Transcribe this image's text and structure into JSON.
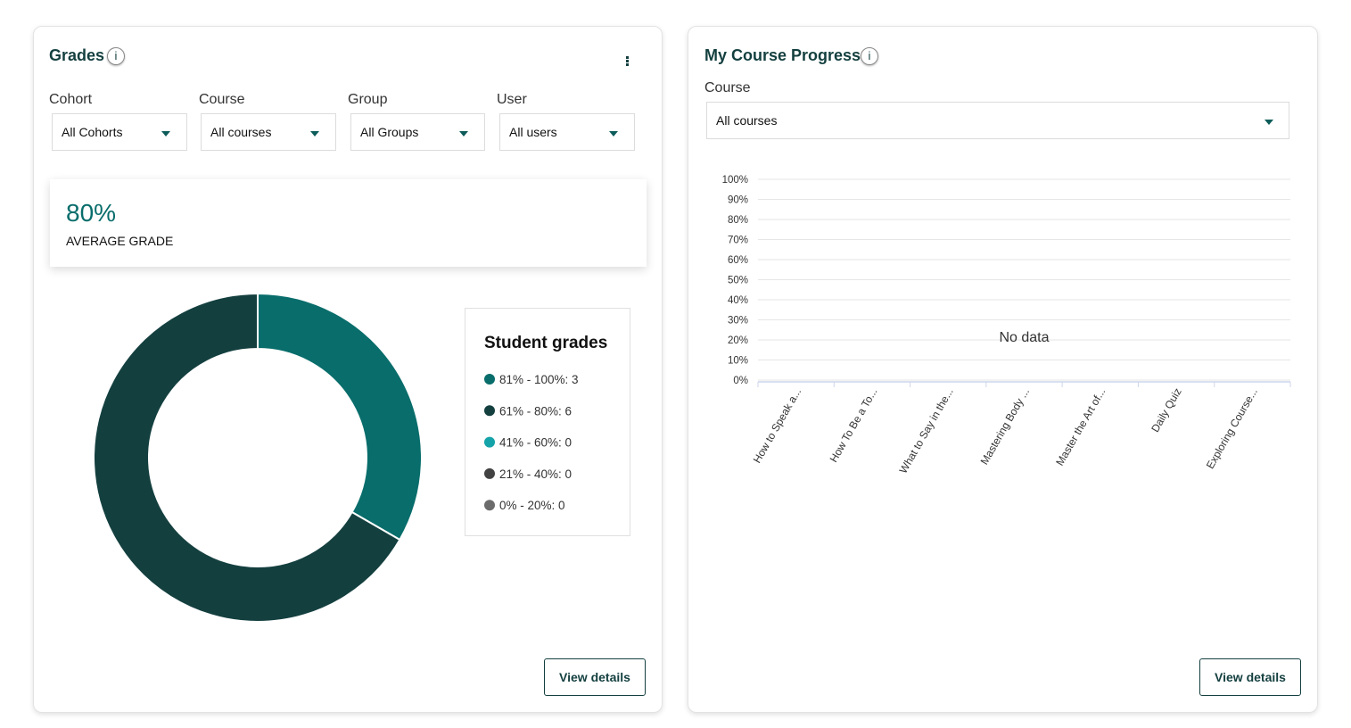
{
  "grades_card": {
    "title": "Grades",
    "filters": [
      {
        "label": "Cohort",
        "value": "All Cohorts"
      },
      {
        "label": "Course",
        "value": "All courses"
      },
      {
        "label": "Group",
        "value": "All Groups"
      },
      {
        "label": "User",
        "value": "All users"
      }
    ],
    "average": {
      "value": "80%",
      "caption": "AVERAGE GRADE"
    },
    "button": "View details"
  },
  "progress_card": {
    "title": "My Course Progress",
    "filter": {
      "label": "Course",
      "value": "All courses"
    },
    "button": "View details"
  },
  "chart_data": [
    {
      "type": "pie",
      "title": "Student grades",
      "categories": [
        "81% - 100%: 3",
        "61% - 80%: 6",
        "41% - 60%: 0",
        "21% - 40%: 0",
        "0% - 20%: 0"
      ],
      "values": [
        3,
        6,
        0,
        0,
        0
      ],
      "colors": [
        "#086d6b",
        "#143f3f",
        "#14a3a8",
        "#424242",
        "#6b6b6b"
      ]
    },
    {
      "type": "bar",
      "categories": [
        "How to Speak a...",
        "How To Be a To...",
        "What to Say in the...",
        "Mastering Body ...",
        "Master the Art of...",
        "Daily Quiz",
        "Exploring Course..."
      ],
      "values": [
        null,
        null,
        null,
        null,
        null,
        null,
        null
      ],
      "ylim": [
        0,
        100
      ],
      "yticks": [
        {
          "value": 0,
          "label": "0%"
        },
        {
          "value": 10,
          "label": "10%"
        },
        {
          "value": 20,
          "label": "20%"
        },
        {
          "value": 30,
          "label": "30%"
        },
        {
          "value": 40,
          "label": "40%"
        },
        {
          "value": 50,
          "label": "50%"
        },
        {
          "value": 60,
          "label": "60%"
        },
        {
          "value": 70,
          "label": "70%"
        },
        {
          "value": 80,
          "label": "80%"
        },
        {
          "value": 90,
          "label": "90%"
        },
        {
          "value": 100,
          "label": "100%"
        }
      ],
      "grid": true,
      "annotation": "No data"
    }
  ]
}
